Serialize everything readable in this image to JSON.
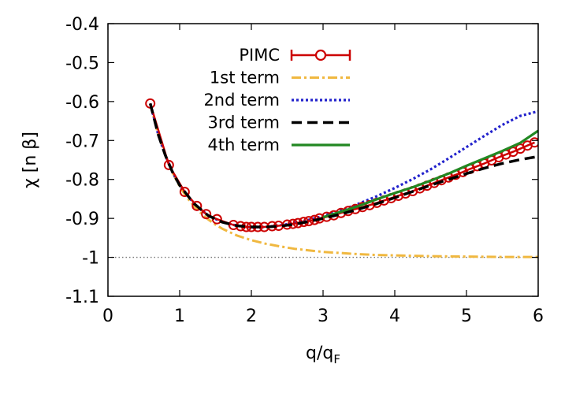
{
  "chart_data": {
    "type": "line",
    "xlabel": "q/q",
    "xlabel_subscript": "F",
    "ylabel": "χ [n β]",
    "xlim": [
      0,
      6
    ],
    "ylim": [
      -1.1,
      -0.4
    ],
    "xticks": [
      0,
      1,
      2,
      3,
      4,
      5,
      6
    ],
    "xtick_labels": [
      "0",
      "1",
      "2",
      "3",
      "4",
      "5",
      "6"
    ],
    "yticks": [
      -1.1,
      -1.0,
      -0.9,
      -0.8,
      -0.7,
      -0.6,
      -0.5,
      -0.4
    ],
    "ytick_labels": [
      "-1.1",
      "-1",
      "-0.9",
      "-0.8",
      "-0.7",
      "-0.6",
      "-0.5",
      "-0.4"
    ],
    "grid": false,
    "legend_position": "top-center",
    "reference_line": {
      "y": -1.0,
      "style": "dotted",
      "color": "#777777"
    },
    "series": [
      {
        "name": "PIMC",
        "style": "line-points-errorbars",
        "color": "#cc0000",
        "x": [
          0.59,
          0.85,
          1.07,
          1.24,
          1.37,
          1.52,
          1.75,
          1.85,
          1.93,
          2.0,
          2.09,
          2.18,
          2.29,
          2.38,
          2.5,
          2.58,
          2.65,
          2.73,
          2.8,
          2.88,
          2.95,
          3.05,
          3.15,
          3.25,
          3.35,
          3.45,
          3.55,
          3.65,
          3.75,
          3.85,
          3.95,
          4.05,
          4.15,
          4.25,
          4.35,
          4.45,
          4.55,
          4.65,
          4.75,
          4.85,
          4.95,
          5.05,
          5.15,
          5.25,
          5.35,
          5.45,
          5.55,
          5.65,
          5.75,
          5.85,
          5.95
        ],
        "y": [
          -0.605,
          -0.763,
          -0.832,
          -0.868,
          -0.889,
          -0.902,
          -0.917,
          -0.92,
          -0.922,
          -0.922,
          -0.922,
          -0.922,
          -0.92,
          -0.919,
          -0.916,
          -0.914,
          -0.912,
          -0.909,
          -0.907,
          -0.904,
          -0.9,
          -0.896,
          -0.892,
          -0.886,
          -0.881,
          -0.876,
          -0.871,
          -0.866,
          -0.86,
          -0.854,
          -0.848,
          -0.842,
          -0.836,
          -0.83,
          -0.823,
          -0.816,
          -0.809,
          -0.802,
          -0.795,
          -0.788,
          -0.781,
          -0.773,
          -0.766,
          -0.759,
          -0.751,
          -0.743,
          -0.736,
          -0.729,
          -0.721,
          -0.713,
          -0.705
        ]
      },
      {
        "name": "1st term",
        "style": "dash-dot",
        "color": "#f0b840",
        "x": [
          0.59,
          0.7,
          0.8,
          0.9,
          1.0,
          1.1,
          1.2,
          1.3,
          1.4,
          1.5,
          1.6,
          1.8,
          2.0,
          2.2,
          2.4,
          2.6,
          2.8,
          3.0,
          3.25,
          3.5,
          3.75,
          4.0,
          4.5,
          5.0,
          5.5,
          6.0
        ],
        "y": [
          -0.605,
          -0.684,
          -0.738,
          -0.782,
          -0.818,
          -0.846,
          -0.868,
          -0.887,
          -0.903,
          -0.916,
          -0.927,
          -0.944,
          -0.956,
          -0.965,
          -0.972,
          -0.978,
          -0.982,
          -0.986,
          -0.989,
          -0.992,
          -0.994,
          -0.995,
          -0.997,
          -0.998,
          -0.999,
          -0.999
        ]
      },
      {
        "name": "2nd term",
        "style": "dotted",
        "color": "#2222cc",
        "x": [
          0.59,
          0.7,
          0.8,
          0.9,
          1.0,
          1.2,
          1.4,
          1.6,
          1.8,
          2.0,
          2.2,
          2.4,
          2.6,
          2.8,
          3.0,
          3.25,
          3.5,
          3.75,
          4.0,
          4.25,
          4.5,
          4.75,
          5.0,
          5.25,
          5.5,
          5.75,
          6.0
        ],
        "y": [
          -0.605,
          -0.684,
          -0.738,
          -0.781,
          -0.815,
          -0.862,
          -0.893,
          -0.91,
          -0.919,
          -0.923,
          -0.922,
          -0.918,
          -0.912,
          -0.904,
          -0.894,
          -0.879,
          -0.862,
          -0.843,
          -0.822,
          -0.799,
          -0.774,
          -0.746,
          -0.717,
          -0.688,
          -0.66,
          -0.637,
          -0.625
        ]
      },
      {
        "name": "3rd term",
        "style": "dashed",
        "color": "#000000",
        "x": [
          0.59,
          0.7,
          0.8,
          0.9,
          1.0,
          1.2,
          1.4,
          1.6,
          1.8,
          2.0,
          2.2,
          2.4,
          2.6,
          2.8,
          3.0,
          3.25,
          3.5,
          3.75,
          4.0,
          4.25,
          4.5,
          4.75,
          5.0,
          5.25,
          5.5,
          5.75,
          6.0
        ],
        "y": [
          -0.605,
          -0.684,
          -0.738,
          -0.781,
          -0.815,
          -0.862,
          -0.893,
          -0.91,
          -0.919,
          -0.922,
          -0.922,
          -0.92,
          -0.915,
          -0.908,
          -0.9,
          -0.889,
          -0.876,
          -0.862,
          -0.847,
          -0.831,
          -0.815,
          -0.8,
          -0.785,
          -0.771,
          -0.759,
          -0.749,
          -0.741
        ]
      },
      {
        "name": "4th term",
        "style": "solid",
        "color": "#228822",
        "x": [
          3.0,
          3.25,
          3.5,
          3.75,
          4.0,
          4.25,
          4.5,
          4.75,
          5.0,
          5.25,
          5.5,
          5.75,
          6.0
        ],
        "y": [
          -0.897,
          -0.883,
          -0.868,
          -0.851,
          -0.835,
          -0.82,
          -0.803,
          -0.785,
          -0.765,
          -0.746,
          -0.727,
          -0.706,
          -0.675
        ]
      }
    ]
  }
}
